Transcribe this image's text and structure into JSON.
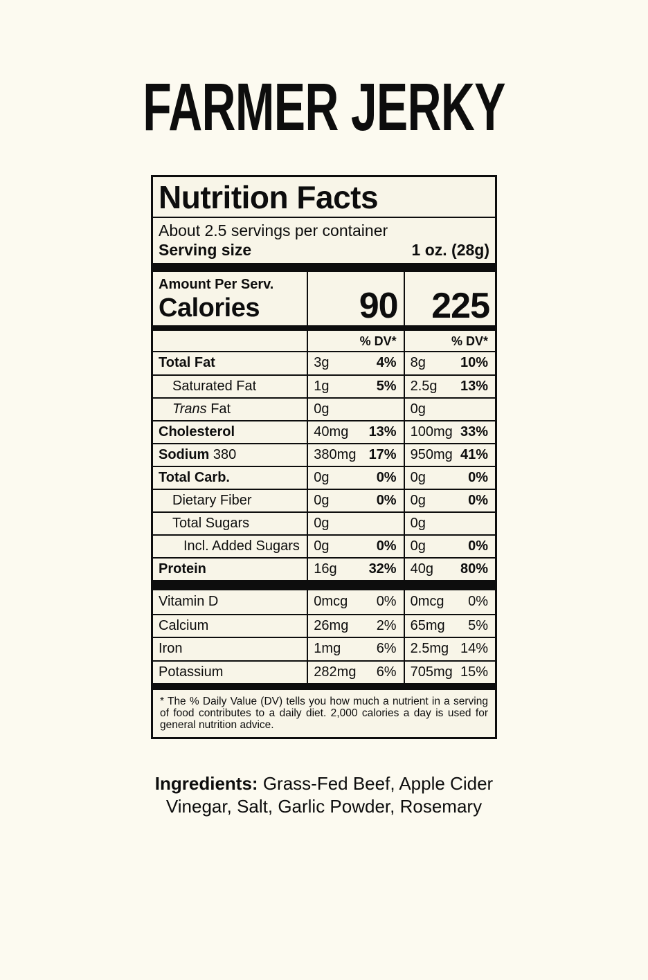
{
  "colors": {
    "background": "#fcfaf0",
    "ink": "#0d0d0d",
    "label_background": "#f8f5e8"
  },
  "page": {
    "title": "FARMER JERKY"
  },
  "label": {
    "title": "Nutrition Facts",
    "servings_per_container": "About 2.5 servings per container",
    "serving_size_label": "Serving size",
    "serving_size_value": "1 oz. (28g)",
    "amount_per_label": "Amount Per Serv.",
    "calories_label": "Calories",
    "calories_per_serving": "90",
    "calories_per_container": "225",
    "dv_header": "% DV*",
    "rows": [
      {
        "name": "Total Fat",
        "name_suffix": "",
        "name_bold": true,
        "name_italic": false,
        "indent": 0,
        "dv_bold": true,
        "serving": {
          "amount": "3g",
          "dv": "4%"
        },
        "container": {
          "amount": "8g",
          "dv": "10%"
        }
      },
      {
        "name": "Saturated Fat",
        "name_suffix": "",
        "name_bold": false,
        "name_italic": false,
        "indent": 1,
        "dv_bold": true,
        "serving": {
          "amount": "1g",
          "dv": "5%"
        },
        "container": {
          "amount": "2.5g",
          "dv": "13%"
        }
      },
      {
        "name": "Trans",
        "name_suffix": " Fat",
        "name_bold": false,
        "name_italic": true,
        "indent": 1,
        "dv_bold": true,
        "serving": {
          "amount": "0g",
          "dv": ""
        },
        "container": {
          "amount": "0g",
          "dv": ""
        }
      },
      {
        "name": "Cholesterol",
        "name_suffix": "",
        "name_bold": true,
        "name_italic": false,
        "indent": 0,
        "dv_bold": true,
        "serving": {
          "amount": "40mg",
          "dv": "13%"
        },
        "container": {
          "amount": "100mg",
          "dv": "33%"
        }
      },
      {
        "name": "Sodium",
        "name_suffix": " 380",
        "name_bold": true,
        "name_italic": false,
        "indent": 0,
        "dv_bold": true,
        "serving": {
          "amount": "380mg",
          "dv": "17%"
        },
        "container": {
          "amount": "950mg",
          "dv": "41%"
        }
      },
      {
        "name": "Total Carb.",
        "name_suffix": "",
        "name_bold": true,
        "name_italic": false,
        "indent": 0,
        "dv_bold": true,
        "serving": {
          "amount": "0g",
          "dv": "0%"
        },
        "container": {
          "amount": "0g",
          "dv": "0%"
        }
      },
      {
        "name": "Dietary Fiber",
        "name_suffix": "",
        "name_bold": false,
        "name_italic": false,
        "indent": 1,
        "dv_bold": true,
        "serving": {
          "amount": "0g",
          "dv": "0%"
        },
        "container": {
          "amount": "0g",
          "dv": "0%"
        }
      },
      {
        "name": "Total Sugars",
        "name_suffix": "",
        "name_bold": false,
        "name_italic": false,
        "indent": 1,
        "dv_bold": true,
        "serving": {
          "amount": "0g",
          "dv": ""
        },
        "container": {
          "amount": "0g",
          "dv": ""
        }
      },
      {
        "name": "Incl. Added Sugars",
        "name_suffix": "",
        "name_bold": false,
        "name_italic": false,
        "indent": 2,
        "dv_bold": true,
        "serving": {
          "amount": "0g",
          "dv": "0%"
        },
        "container": {
          "amount": "0g",
          "dv": "0%"
        }
      },
      {
        "name": "Protein",
        "name_suffix": "",
        "name_bold": true,
        "name_italic": false,
        "indent": 0,
        "dv_bold": true,
        "serving": {
          "amount": "16g",
          "dv": "32%"
        },
        "container": {
          "amount": "40g",
          "dv": "80%"
        }
      }
    ],
    "micronutrients": [
      {
        "name": "Vitamin D",
        "name_suffix": "",
        "name_bold": false,
        "name_italic": false,
        "indent": 0,
        "dv_bold": false,
        "serving": {
          "amount": "0mcg",
          "dv": "0%"
        },
        "container": {
          "amount": "0mcg",
          "dv": "0%"
        }
      },
      {
        "name": "Calcium",
        "name_suffix": "",
        "name_bold": false,
        "name_italic": false,
        "indent": 0,
        "dv_bold": false,
        "serving": {
          "amount": "26mg",
          "dv": "2%"
        },
        "container": {
          "amount": "65mg",
          "dv": "5%"
        }
      },
      {
        "name": "Iron",
        "name_suffix": "",
        "name_bold": false,
        "name_italic": false,
        "indent": 0,
        "dv_bold": false,
        "serving": {
          "amount": "1mg",
          "dv": "6%"
        },
        "container": {
          "amount": "2.5mg",
          "dv": "14%"
        }
      },
      {
        "name": "Potassium",
        "name_suffix": "",
        "name_bold": false,
        "name_italic": false,
        "indent": 0,
        "dv_bold": false,
        "serving": {
          "amount": "282mg",
          "dv": "6%"
        },
        "container": {
          "amount": "705mg",
          "dv": "15%"
        }
      }
    ],
    "footnote": "* The % Daily Value (DV) tells you how much a nutrient in a serving of food contributes to a daily diet. 2,000 calories a day is used for general nutrition advice."
  },
  "ingredients": {
    "label": "Ingredients:",
    "text": "Grass-Fed Beef, Apple Cider Vinegar, Salt, Garlic Powder, Rosemary"
  }
}
